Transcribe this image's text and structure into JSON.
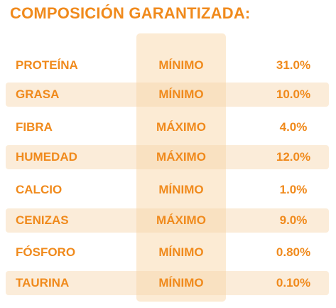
{
  "title": "COMPOSICIÓN GARANTIZADA:",
  "colors": {
    "text": "#f08a1c",
    "highlight_column": "#fcebd4",
    "shaded_row": "#f6d5aa"
  },
  "rows": [
    {
      "name": "PROTEÍNA",
      "type": "MÍNIMO",
      "value": "31.0%",
      "shaded": false
    },
    {
      "name": "GRASA",
      "type": "MÍNIMO",
      "value": "10.0%",
      "shaded": true
    },
    {
      "name": "FIBRA",
      "type": "MÁXIMO",
      "value": "4.0%",
      "shaded": false
    },
    {
      "name": "HUMEDAD",
      "type": "MÁXIMO",
      "value": "12.0%",
      "shaded": true
    },
    {
      "name": "CALCIO",
      "type": "MÍNIMO",
      "value": "1.0%",
      "shaded": false
    },
    {
      "name": "CENIZAS",
      "type": "MÁXIMO",
      "value": "9.0%",
      "shaded": true
    },
    {
      "name": "FÓSFORO",
      "type": "MÍNIMO",
      "value": "0.80%",
      "shaded": false
    },
    {
      "name": "TAURINA",
      "type": "MÍNIMO",
      "value": "0.10%",
      "shaded": true
    }
  ]
}
